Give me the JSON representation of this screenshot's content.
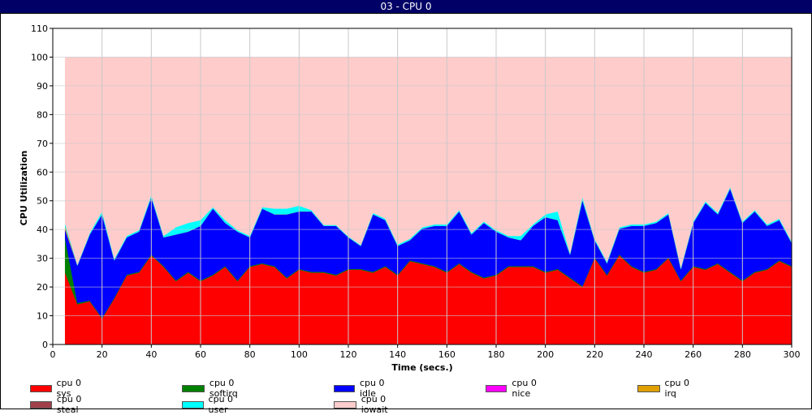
{
  "window": {
    "title": "03 - CPU 0"
  },
  "chart_data": {
    "type": "area",
    "stacked": true,
    "xlabel": "Time (secs.)",
    "ylabel": "CPU Utilization",
    "xlim": [
      0,
      300
    ],
    "ylim": [
      0,
      110
    ],
    "xticks": [
      0,
      20,
      40,
      60,
      80,
      100,
      120,
      140,
      160,
      180,
      200,
      220,
      240,
      260,
      280,
      300
    ],
    "yticks": [
      0,
      10,
      20,
      30,
      40,
      50,
      60,
      70,
      80,
      90,
      100,
      110
    ],
    "grid": true,
    "legend_position": "bottom",
    "x": [
      5,
      10,
      15,
      20,
      25,
      30,
      35,
      40,
      45,
      50,
      55,
      60,
      65,
      70,
      75,
      80,
      85,
      90,
      95,
      100,
      105,
      110,
      115,
      120,
      125,
      130,
      135,
      140,
      145,
      150,
      155,
      160,
      165,
      170,
      175,
      180,
      185,
      190,
      195,
      200,
      205,
      210,
      215,
      220,
      225,
      230,
      235,
      240,
      245,
      250,
      255,
      260,
      265,
      270,
      275,
      280,
      285,
      290,
      295,
      300
    ],
    "series": [
      {
        "name": "cpu 0 sys",
        "color": "#ff0000",
        "values": [
          25,
          14,
          15,
          9,
          16,
          24,
          25,
          31,
          27,
          22,
          25,
          22,
          24,
          27,
          22,
          27,
          28,
          27,
          23,
          26,
          25,
          25,
          24,
          26,
          26,
          25,
          27,
          24,
          29,
          28,
          27,
          25,
          28,
          25,
          23,
          24,
          27,
          27,
          27,
          25,
          26,
          23,
          20,
          30,
          24,
          31,
          27,
          25,
          26,
          30,
          22,
          27,
          26,
          28,
          25,
          22,
          25,
          26,
          29,
          27
        ]
      },
      {
        "name": "cpu 0 softirq",
        "color": "#008000",
        "values": [
          12,
          0.5,
          0.3,
          0.3,
          0.3,
          0.3,
          0.3,
          0.3,
          0.3,
          0.3,
          0.3,
          0.3,
          0.3,
          0.3,
          0.3,
          0.3,
          0.3,
          0.3,
          0.3,
          0.3,
          0.3,
          0.3,
          0.3,
          0.3,
          0.3,
          0.3,
          0.3,
          0.3,
          0.3,
          0.3,
          0.3,
          0.3,
          0.3,
          0.3,
          0.3,
          0.3,
          0.3,
          0.3,
          0.3,
          0.3,
          0.3,
          0.3,
          0.3,
          0.3,
          0.3,
          0.3,
          0.3,
          0.3,
          0.3,
          0.3,
          0.3,
          0.3,
          0.3,
          0.3,
          0.3,
          0.3,
          0.3,
          0.3,
          0.3,
          0.3
        ]
      },
      {
        "name": "cpu 0 idle",
        "color": "#0000ff",
        "values": [
          3,
          13,
          23,
          36,
          13,
          13,
          14,
          20,
          10,
          16,
          14,
          19,
          23,
          15,
          17,
          10,
          19,
          18,
          22,
          20,
          21,
          16,
          17,
          11,
          8,
          20,
          16,
          10,
          7,
          12,
          14,
          16,
          18,
          13,
          19,
          15,
          10,
          9,
          14,
          19,
          17,
          8,
          30,
          6,
          4,
          9,
          14,
          16,
          16,
          15,
          4,
          15,
          23,
          17,
          29,
          20,
          21,
          15,
          14,
          8
        ]
      },
      {
        "name": "cpu 0 nice",
        "color": "#ff00ff",
        "values": [
          0,
          0,
          0,
          0,
          0,
          0,
          0,
          0,
          0,
          0,
          0,
          0,
          0,
          0,
          0,
          0,
          0,
          0,
          0,
          0,
          0,
          0,
          0,
          0,
          0,
          0,
          0,
          0,
          0,
          0,
          0,
          0,
          0,
          0,
          0,
          0,
          0,
          0,
          0,
          0,
          0,
          0,
          0,
          0,
          0,
          0,
          0,
          0,
          0,
          0,
          0,
          0,
          0,
          0,
          0,
          0,
          0,
          0,
          0,
          0
        ]
      },
      {
        "name": "cpu 0 irq",
        "color": "#e0a000",
        "values": [
          1,
          0,
          0,
          0,
          0,
          0,
          0,
          0,
          0,
          0,
          0,
          0,
          0,
          0,
          0,
          0,
          0,
          0,
          0,
          0,
          0,
          0,
          0,
          0,
          0,
          0,
          0,
          0,
          0,
          0,
          0,
          0,
          0,
          0,
          0,
          0,
          0,
          0,
          0,
          0,
          0,
          0,
          0,
          0,
          0,
          0,
          0,
          0,
          0,
          0,
          0,
          0,
          0,
          0,
          0,
          0,
          0,
          0,
          0,
          0
        ]
      },
      {
        "name": "cpu 0 steal",
        "color": "#a0404a",
        "values": [
          0,
          0,
          0,
          0,
          0,
          0,
          0,
          0,
          0,
          0,
          0,
          0,
          0,
          0,
          0,
          0,
          0,
          0,
          0,
          0,
          0,
          0,
          0,
          0,
          0,
          0,
          0,
          0,
          0,
          0,
          0,
          0,
          0,
          0,
          0,
          0,
          0,
          0,
          0,
          0,
          0,
          0,
          0,
          0,
          0,
          0,
          0,
          0,
          0,
          0,
          0,
          0,
          0,
          0,
          0,
          0,
          0,
          0,
          0,
          0
        ]
      },
      {
        "name": "cpu 0 user",
        "color": "#00ffff",
        "values": [
          1,
          0.3,
          0.5,
          1,
          0.5,
          0.5,
          0.5,
          0.8,
          0.5,
          2.5,
          3,
          2,
          0.5,
          1,
          0.5,
          0.5,
          0.5,
          2,
          2,
          2,
          0.5,
          0.3,
          0.3,
          0.3,
          0.3,
          0.5,
          0.5,
          0.5,
          0.5,
          0.5,
          0.5,
          0.5,
          0.5,
          0.5,
          0.5,
          0.5,
          0.5,
          1.5,
          0.5,
          1,
          3,
          0.5,
          1,
          0.5,
          0.5,
          0.5,
          0.5,
          0.5,
          0.5,
          0.5,
          0.5,
          0.5,
          0.5,
          0.5,
          0.5,
          0.5,
          0.5,
          0.5,
          0.5,
          0.5
        ]
      },
      {
        "name": "cpu 0 iowait",
        "color": "#ffcccc",
        "values": [
          58,
          72.2,
          61.2,
          53.7,
          70.2,
          62.2,
          60.2,
          47.9,
          62.2,
          59.2,
          57.7,
          56.7,
          52.2,
          56.7,
          60.2,
          62.2,
          52.2,
          52.7,
          52.7,
          51.7,
          53.2,
          58.4,
          58.4,
          62.4,
          65.4,
          54.2,
          56.2,
          65.2,
          63.2,
          59.2,
          58.2,
          58.2,
          53.2,
          61.2,
          57.2,
          60.2,
          62.2,
          62.2,
          58.2,
          54.7,
          53.7,
          68.2,
          48.7,
          63.2,
          71.2,
          59.2,
          58.2,
          58.2,
          57.2,
          54.2,
          73.2,
          57.2,
          50.2,
          54.2,
          45.2,
          57.2,
          53.2,
          58.2,
          56.2,
          64.2
        ]
      }
    ]
  }
}
